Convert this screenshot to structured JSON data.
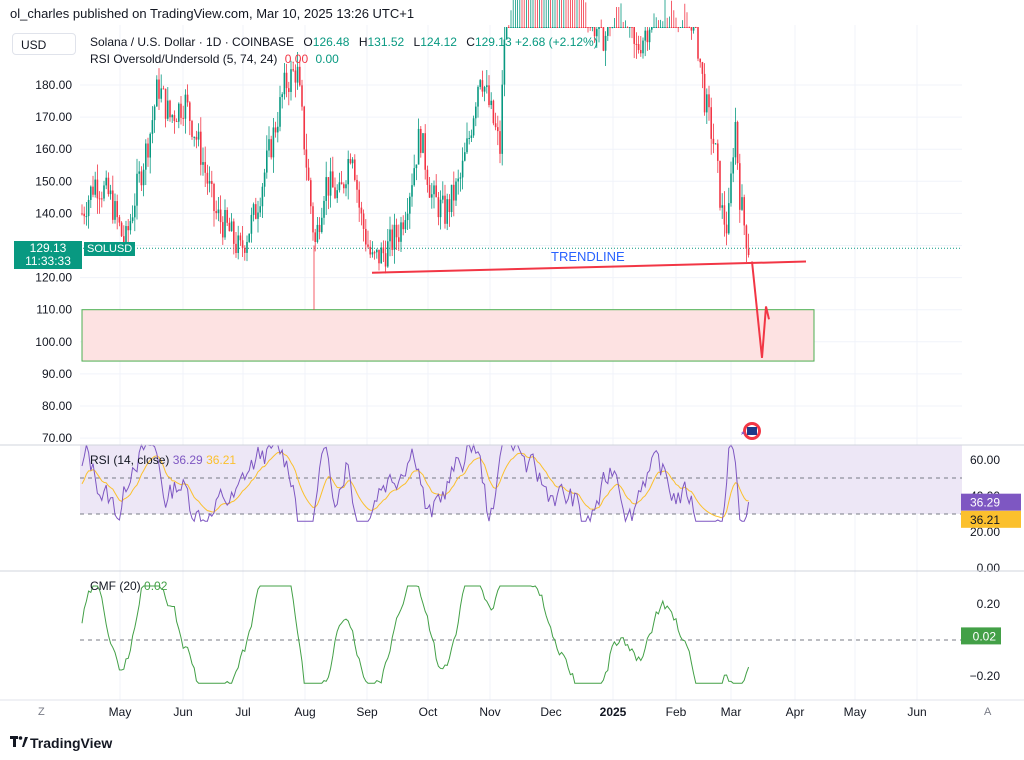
{
  "header": {
    "publisher_line": "ol_charles published on TradingView.com, Mar 10, 2025 13:26 UTC+1"
  },
  "currency_button": "USD",
  "legend": {
    "symbol": "Solana / U.S. Dollar · 1D · COINBASE",
    "o_label": "O",
    "o_value": "126.48",
    "h_label": "H",
    "h_value": "131.52",
    "l_label": "L",
    "l_value": "124.12",
    "c_label": "C",
    "c_value": "129.13",
    "change": "+2.68 (+2.12%)",
    "indicator": "RSI Oversold/Undersold (5, 74, 24)",
    "ind_v1": "0.00",
    "ind_v2": "0.00"
  },
  "price_badge": {
    "price": "129.13",
    "countdown": "11:33:33",
    "symbol": "SOLUSD"
  },
  "annotation": {
    "trendline_label": "TRENDLINE"
  },
  "rsi_legend": {
    "label": "RSI (14, close)",
    "v1": "36.29",
    "v2": "36.21"
  },
  "cmf_legend": {
    "label": "CMF (20)",
    "value": "0.02"
  },
  "footer": {
    "brand": "TradingView",
    "z_button": "Z",
    "a_button": "A"
  },
  "colors": {
    "up": "#089981",
    "down": "#f23645",
    "rsi": "#7e57c2",
    "rsi_ma": "#fbc02d",
    "cmf": "#43a047",
    "zone_fill": "#fde2e2",
    "zone_border": "#4caf50",
    "trendline": "#f23645"
  },
  "chart_data": [
    {
      "type": "candlestick",
      "title": "Solana / U.S. Dollar · 1D · COINBASE",
      "ylim": [
        68,
        190
      ],
      "yticks": [
        "180.00",
        "170.00",
        "160.00",
        "150.00",
        "140.00",
        "130.00",
        "120.00",
        "110.00",
        "100.00",
        "90.00",
        "80.00",
        "70.00"
      ],
      "x_tick_labels": [
        "May",
        "Jun",
        "Jul",
        "Aug",
        "Sep",
        "Oct",
        "Nov",
        "Dec",
        "2025",
        "Feb",
        "Mar",
        "Apr",
        "May",
        "Jun"
      ],
      "approx_monthly_close": [
        {
          "month": "May",
          "close": 150
        },
        {
          "month": "Jun",
          "close": 165
        },
        {
          "month": "Jul",
          "close": 140
        },
        {
          "month": "Aug",
          "close": 160
        },
        {
          "month": "Sep",
          "close": 135
        },
        {
          "month": "Oct",
          "close": 150
        },
        {
          "month": "Nov",
          "close": 175
        },
        {
          "month": "Dec",
          "close": 225
        },
        {
          "month": "2025",
          "close": 190
        },
        {
          "month": "Feb",
          "close": 175
        },
        {
          "month": "Mar",
          "close": 129.13
        }
      ],
      "last_price": 129.13,
      "trendline": {
        "label": "TRENDLINE",
        "from_value": 121.5,
        "to_value": 125
      },
      "support_zone": [
        94,
        110
      ],
      "projection": [
        125,
        95,
        111,
        107
      ]
    },
    {
      "type": "line",
      "name": "RSI (14, close)",
      "ylim": [
        0,
        70
      ],
      "yticks": [
        "60.00",
        "40.00",
        "20.00",
        "0.00"
      ],
      "reference_lines": [
        50,
        30
      ],
      "last_values": [
        36.29,
        36.21
      ]
    },
    {
      "type": "line",
      "name": "CMF (20)",
      "ylim": [
        -0.28,
        0.3
      ],
      "yticks": [
        "0.20",
        "0.00",
        "−0.20"
      ],
      "last_value": 0.02
    }
  ]
}
